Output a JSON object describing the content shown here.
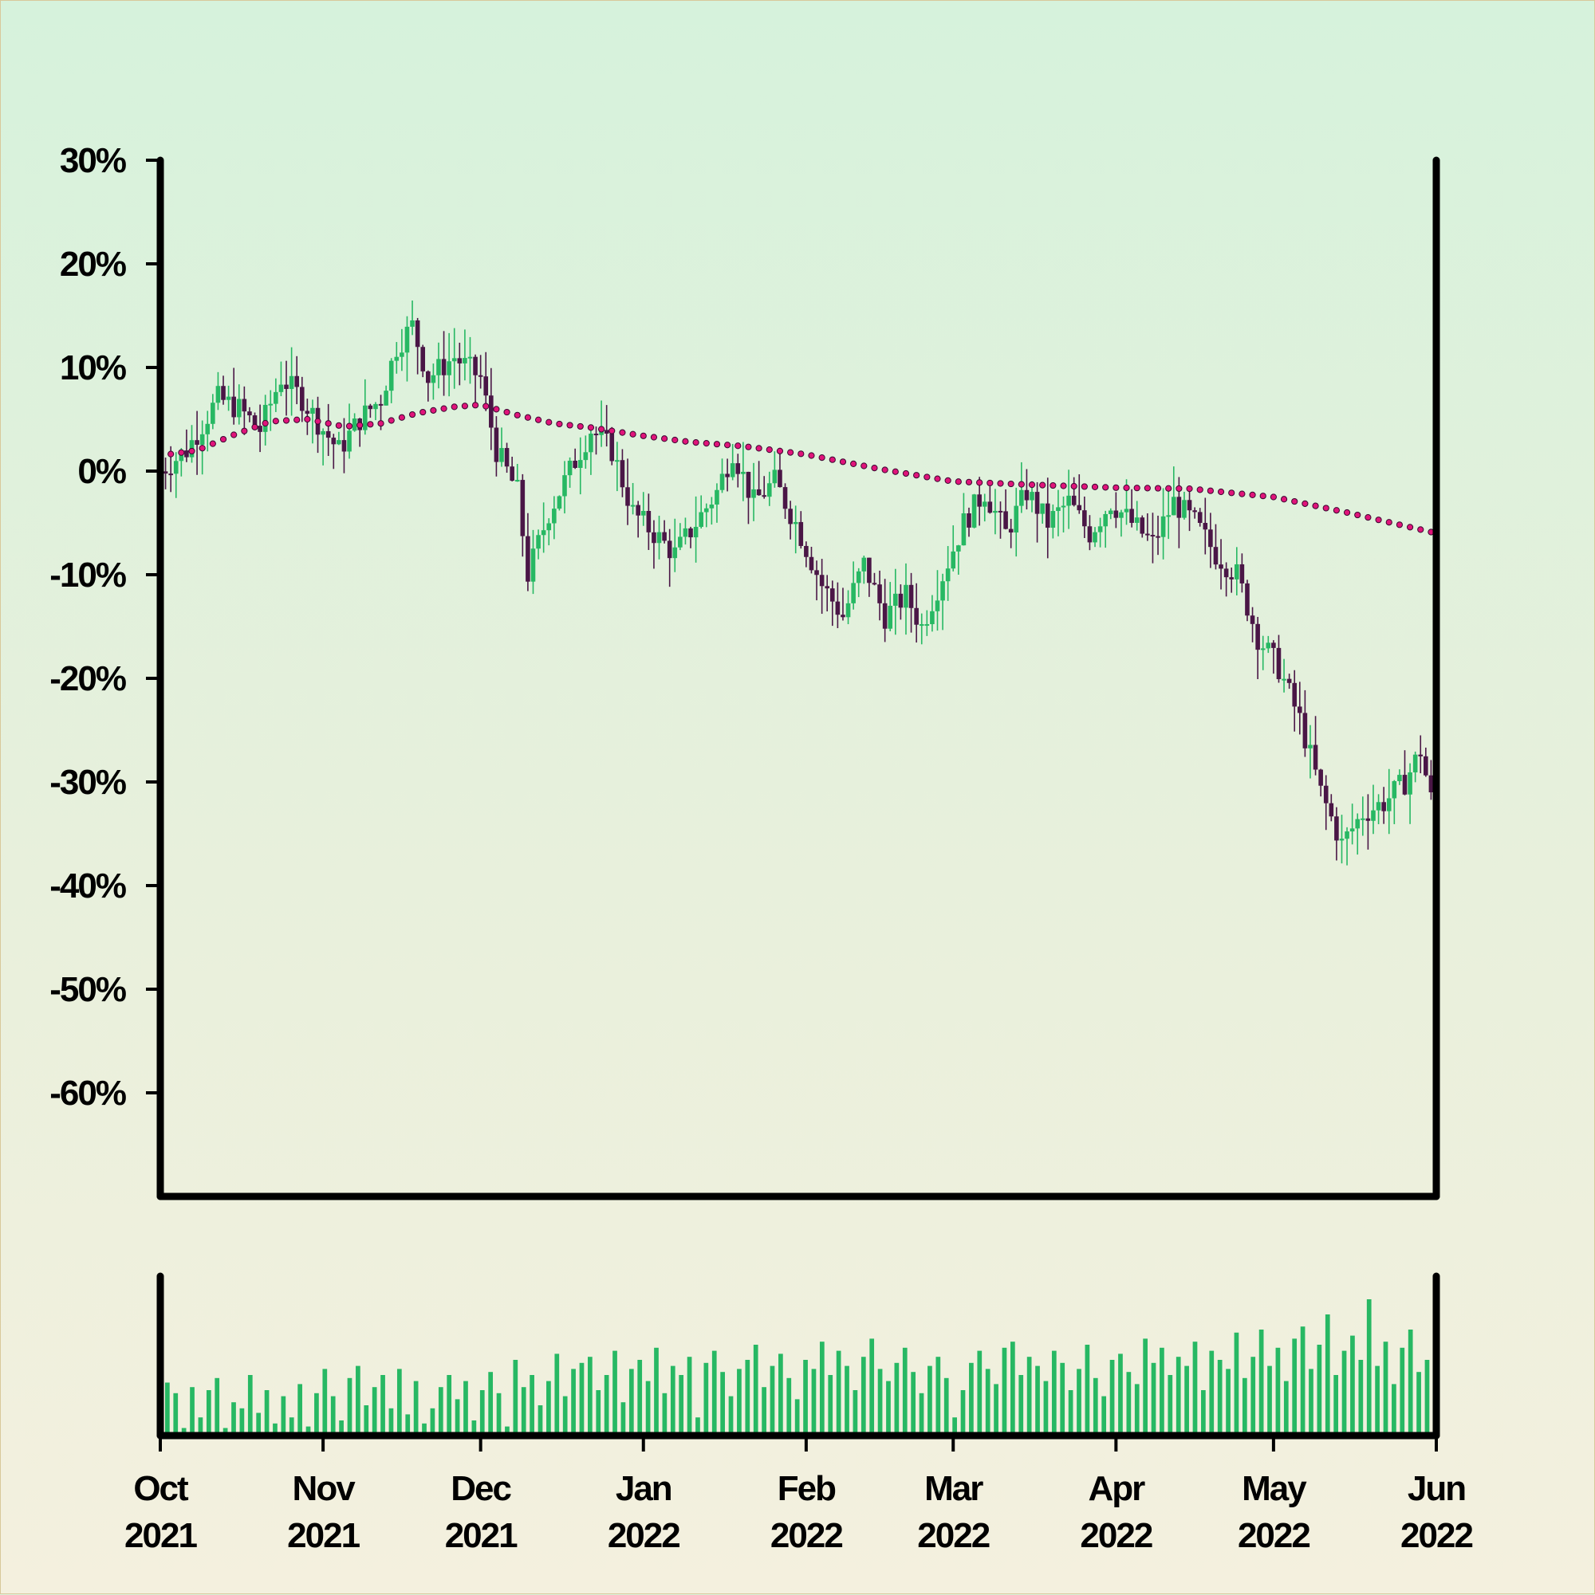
{
  "colors": {
    "up": "#27b863",
    "down": "#4a1646",
    "trend": "#e0147a",
    "trend_edge": "#3a0830",
    "axis": "#000000",
    "volume": "#27b863"
  },
  "chart_data": {
    "type": "candlestick",
    "title": "",
    "xlabel": "",
    "ylabel": "",
    "y_unit": "%",
    "ylim": [
      -70,
      30
    ],
    "yticks": [
      30,
      20,
      10,
      0,
      -10,
      -20,
      -30,
      -40,
      -50,
      -60
    ],
    "ytick_labels": [
      "30%",
      "20%",
      "10%",
      "0%",
      "-10%",
      "-20%",
      "-30%",
      "-40%",
      "-50%",
      "-60%"
    ],
    "xlim": [
      "2021-10-01",
      "2022-06-01"
    ],
    "xticks": [
      {
        "month": "Oct",
        "year": "2021",
        "date": "2021-10-01"
      },
      {
        "month": "Nov",
        "year": "2021",
        "date": "2021-11-01"
      },
      {
        "month": "Dec",
        "year": "2021",
        "date": "2021-12-01"
      },
      {
        "month": "Jan",
        "year": "2022",
        "date": "2022-01-01"
      },
      {
        "month": "Feb",
        "year": "2022",
        "date": "2022-02-01"
      },
      {
        "month": "Mar",
        "year": "2022",
        "date": "2022-03-01"
      },
      {
        "month": "Apr",
        "year": "2022",
        "date": "2022-04-01"
      },
      {
        "month": "May",
        "year": "2022",
        "date": "2022-05-01"
      },
      {
        "month": "Jun",
        "year": "2022",
        "date": "2022-06-01"
      }
    ],
    "grid": false,
    "close_path": [
      [
        "2021-10-01",
        0
      ],
      [
        "2021-10-06",
        2
      ],
      [
        "2021-10-12",
        7
      ],
      [
        "2021-10-16",
        6
      ],
      [
        "2021-10-20",
        4
      ],
      [
        "2021-10-24",
        9
      ],
      [
        "2021-10-28",
        7
      ],
      [
        "2021-11-01",
        4
      ],
      [
        "2021-11-04",
        2
      ],
      [
        "2021-11-08",
        5
      ],
      [
        "2021-11-12",
        7
      ],
      [
        "2021-11-15",
        12
      ],
      [
        "2021-11-18",
        14
      ],
      [
        "2021-11-21",
        9
      ],
      [
        "2021-11-26",
        11
      ],
      [
        "2021-12-01",
        9
      ],
      [
        "2021-12-04",
        2
      ],
      [
        "2021-12-08",
        -2
      ],
      [
        "2021-12-10",
        -10
      ],
      [
        "2021-12-14",
        -4
      ],
      [
        "2021-12-18",
        0
      ],
      [
        "2021-12-22",
        4
      ],
      [
        "2021-12-26",
        2
      ],
      [
        "2021-12-30",
        -4
      ],
      [
        "2022-01-03",
        -6
      ],
      [
        "2022-01-07",
        -8
      ],
      [
        "2022-01-11",
        -5
      ],
      [
        "2022-01-15",
        -2
      ],
      [
        "2022-01-18",
        2
      ],
      [
        "2022-01-22",
        -3
      ],
      [
        "2022-01-26",
        -1
      ],
      [
        "2022-01-30",
        -5
      ],
      [
        "2022-02-04",
        -11
      ],
      [
        "2022-02-08",
        -14
      ],
      [
        "2022-02-12",
        -9
      ],
      [
        "2022-02-16",
        -14
      ],
      [
        "2022-02-20",
        -12
      ],
      [
        "2022-02-23",
        -15
      ],
      [
        "2022-02-27",
        -10
      ],
      [
        "2022-03-03",
        -5
      ],
      [
        "2022-03-07",
        -2
      ],
      [
        "2022-03-11",
        -6
      ],
      [
        "2022-03-15",
        -2
      ],
      [
        "2022-03-19",
        -5
      ],
      [
        "2022-03-23",
        -3
      ],
      [
        "2022-03-27",
        -6
      ],
      [
        "2022-03-31",
        -3
      ],
      [
        "2022-04-04",
        -5
      ],
      [
        "2022-04-08",
        -7
      ],
      [
        "2022-04-12",
        -3
      ],
      [
        "2022-04-16",
        -5
      ],
      [
        "2022-04-20",
        -8
      ],
      [
        "2022-04-24",
        -10
      ],
      [
        "2022-04-28",
        -16
      ],
      [
        "2022-05-02",
        -19
      ],
      [
        "2022-05-06",
        -24
      ],
      [
        "2022-05-10",
        -31
      ],
      [
        "2022-05-14",
        -36
      ],
      [
        "2022-05-18",
        -33
      ],
      [
        "2022-05-22",
        -32
      ],
      [
        "2022-05-26",
        -30
      ],
      [
        "2022-05-29",
        -27
      ],
      [
        "2022-06-01",
        -34
      ]
    ],
    "trend_line": [
      [
        "2021-10-01",
        1.5
      ],
      [
        "2021-10-08",
        2
      ],
      [
        "2021-10-15",
        3.5
      ],
      [
        "2021-10-22",
        4.8
      ],
      [
        "2021-10-29",
        5
      ],
      [
        "2021-11-05",
        4.3
      ],
      [
        "2021-11-12",
        4.6
      ],
      [
        "2021-11-19",
        5.6
      ],
      [
        "2021-11-26",
        6.2
      ],
      [
        "2021-12-01",
        6.4
      ],
      [
        "2021-12-08",
        5.4
      ],
      [
        "2021-12-15",
        4.6
      ],
      [
        "2021-12-22",
        4.2
      ],
      [
        "2022-01-01",
        3.4
      ],
      [
        "2022-01-10",
        2.8
      ],
      [
        "2022-01-20",
        2.4
      ],
      [
        "2022-02-01",
        1.6
      ],
      [
        "2022-02-15",
        0.2
      ],
      [
        "2022-03-01",
        -1.0
      ],
      [
        "2022-03-15",
        -1.3
      ],
      [
        "2022-04-01",
        -1.6
      ],
      [
        "2022-04-15",
        -1.7
      ],
      [
        "2022-05-01",
        -2.5
      ],
      [
        "2022-05-15",
        -4.0
      ],
      [
        "2022-06-01",
        -6.0
      ]
    ],
    "volume": {
      "units": "relative",
      "values": [
        0.35,
        0.28,
        0.05,
        0.32,
        0.12,
        0.3,
        0.38,
        0.05,
        0.22,
        0.18,
        0.4,
        0.15,
        0.3,
        0.08,
        0.26,
        0.12,
        0.34,
        0.06,
        0.28,
        0.44,
        0.26,
        0.1,
        0.38,
        0.46,
        0.2,
        0.32,
        0.4,
        0.18,
        0.44,
        0.14,
        0.36,
        0.08,
        0.18,
        0.32,
        0.4,
        0.24,
        0.36,
        0.1,
        0.3,
        0.42,
        0.28,
        0.06,
        0.5,
        0.32,
        0.4,
        0.2,
        0.36,
        0.54,
        0.26,
        0.44,
        0.48,
        0.52,
        0.3,
        0.4,
        0.56,
        0.22,
        0.44,
        0.5,
        0.36,
        0.58,
        0.28,
        0.46,
        0.4,
        0.52,
        0.12,
        0.48,
        0.56,
        0.42,
        0.26,
        0.44,
        0.5,
        0.6,
        0.32,
        0.46,
        0.54,
        0.38,
        0.24,
        0.5,
        0.44,
        0.62,
        0.4,
        0.56,
        0.46,
        0.3,
        0.52,
        0.64,
        0.44,
        0.36,
        0.48,
        0.58,
        0.42,
        0.28,
        0.46,
        0.52,
        0.38,
        0.12,
        0.3,
        0.48,
        0.56,
        0.44,
        0.34,
        0.58,
        0.62,
        0.4,
        0.52,
        0.46,
        0.36,
        0.56,
        0.48,
        0.3,
        0.44,
        0.6,
        0.38,
        0.26,
        0.5,
        0.54,
        0.42,
        0.34,
        0.64,
        0.48,
        0.58,
        0.4,
        0.52,
        0.46,
        0.62,
        0.3,
        0.56,
        0.5,
        0.44,
        0.68,
        0.38,
        0.52,
        0.7,
        0.46,
        0.58,
        0.36,
        0.64,
        0.72,
        0.44,
        0.6,
        0.8,
        0.4,
        0.56,
        0.66,
        0.5,
        0.9,
        0.46,
        0.62,
        0.34,
        0.58,
        0.7,
        0.42,
        0.5
      ]
    }
  }
}
